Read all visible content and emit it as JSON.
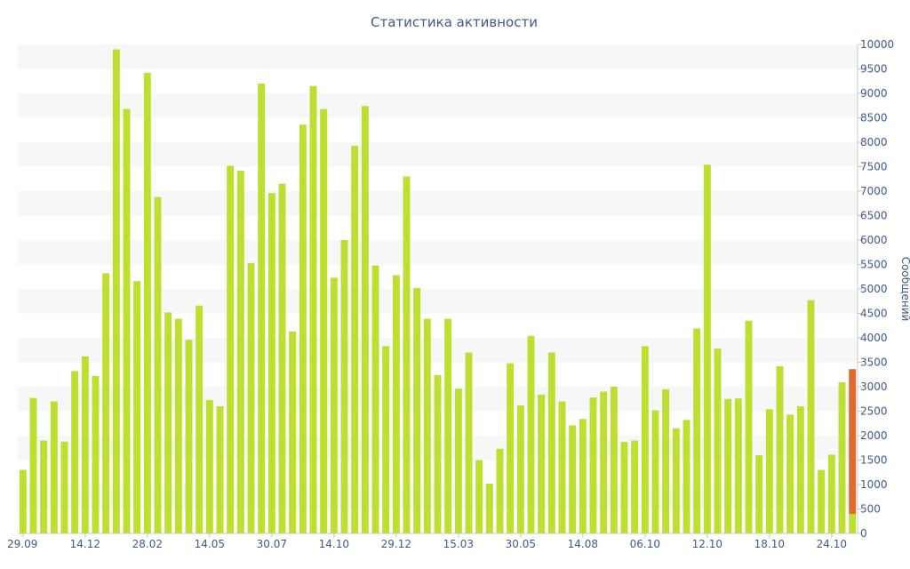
{
  "chart_data": {
    "type": "bar",
    "title": "Статистика активности",
    "xlabel": "",
    "ylabel": "Сообщений",
    "ylim": [
      0,
      10000
    ],
    "y_ticks": [
      0,
      500,
      1000,
      1500,
      2000,
      2500,
      3000,
      3500,
      4000,
      4500,
      5000,
      5500,
      6000,
      6500,
      7000,
      7500,
      8000,
      8500,
      9000,
      9500,
      10000
    ],
    "y_axis_side": "right",
    "x_tick_labels": [
      {
        "label": "29.09",
        "index": 0
      },
      {
        "label": "14.12",
        "index": 6
      },
      {
        "label": "28.02",
        "index": 12
      },
      {
        "label": "14.05",
        "index": 18
      },
      {
        "label": "30.07",
        "index": 24
      },
      {
        "label": "14.10",
        "index": 30
      },
      {
        "label": "29.12",
        "index": 36
      },
      {
        "label": "15.03",
        "index": 42
      },
      {
        "label": "30.05",
        "index": 48
      },
      {
        "label": "14.08",
        "index": 54
      },
      {
        "label": "06.10",
        "index": 60
      },
      {
        "label": "12.10",
        "index": 66
      },
      {
        "label": "18.10",
        "index": 72
      },
      {
        "label": "24.10",
        "index": 78
      }
    ],
    "grid": "horizontal alternating bands",
    "legend": "none",
    "colors": {
      "bar": "#bddf2f",
      "highlight": "#e06a2f",
      "band": "#f7f7f7",
      "text": "#3f5a8a",
      "axis": "#c8c8c8"
    },
    "values": [
      1300,
      2770,
      1900,
      2700,
      1880,
      3320,
      3620,
      3220,
      5320,
      9900,
      8680,
      5160,
      9420,
      6880,
      4520,
      4390,
      3960,
      4660,
      2730,
      2600,
      7520,
      7420,
      5530,
      9200,
      6960,
      7150,
      4130,
      8360,
      9150,
      8680,
      5230,
      6000,
      7930,
      8740,
      5480,
      3830,
      5280,
      7300,
      5020,
      4390,
      3240,
      4390,
      2960,
      3700,
      1500,
      1020,
      1730,
      3480,
      2620,
      4040,
      2840,
      3700,
      2700,
      2210,
      2340,
      2780,
      2900,
      3000,
      1870,
      1900,
      3830,
      2520,
      2950,
      2150,
      2320,
      4190,
      7540,
      3780,
      2750,
      2760,
      4350,
      1600,
      2540,
      3420,
      2430,
      2600,
      4770,
      1300,
      1610,
      3090,
      3360
    ],
    "last_bar_split": {
      "base": 400,
      "total": 3360
    }
  }
}
